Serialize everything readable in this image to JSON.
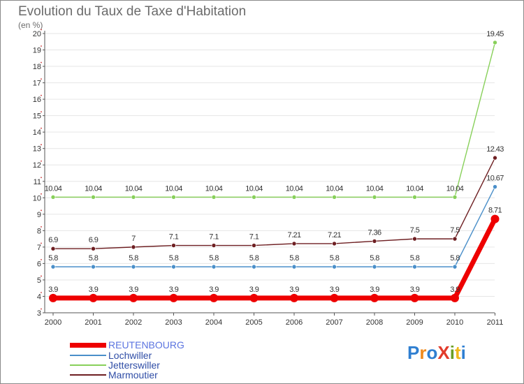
{
  "chart_data": {
    "type": "line",
    "title": "Evolution du Taux de Taxe d'Habitation",
    "unit_label": "(en %)",
    "x": [
      "2000",
      "2001",
      "2002",
      "2003",
      "2004",
      "2005",
      "2006",
      "2007",
      "2008",
      "2009",
      "2010",
      "2011"
    ],
    "ylim": [
      3,
      20
    ],
    "yticks": [
      "3",
      "4",
      "5",
      "6",
      "7",
      "8",
      "9",
      "10",
      "11",
      "12",
      "13",
      "14",
      "15",
      "16",
      "17",
      "18",
      "19",
      "20"
    ],
    "series": [
      {
        "name": "Jetterswiller",
        "color": "#88d05a",
        "values": [
          10.04,
          10.04,
          10.04,
          10.04,
          10.04,
          10.04,
          10.04,
          10.04,
          10.04,
          10.04,
          10.04,
          19.45
        ],
        "labels": [
          "10.04",
          "10.04",
          "10.04",
          "10.04",
          "10.04",
          "10.04",
          "10.04",
          "10.04",
          "10.04",
          "10.04",
          "10.04",
          "19.45"
        ]
      },
      {
        "name": "Marmoutier",
        "color": "#6e1f22",
        "values": [
          6.9,
          6.9,
          7,
          7.1,
          7.1,
          7.1,
          7.21,
          7.21,
          7.36,
          7.5,
          7.5,
          12.43
        ],
        "labels": [
          "6.9",
          "6.9",
          "7",
          "7.1",
          "7.1",
          "7.1",
          "7.21",
          "7.21",
          "7.36",
          "7.5",
          "7.5",
          "12.43"
        ]
      },
      {
        "name": "Lochwiller",
        "color": "#4a8fc9",
        "values": [
          5.8,
          5.8,
          5.8,
          5.8,
          5.8,
          5.8,
          5.8,
          5.8,
          5.8,
          5.8,
          5.8,
          10.67
        ],
        "labels": [
          "5.8",
          "5.8",
          "5.8",
          "5.8",
          "5.8",
          "5.8",
          "5.8",
          "5.8",
          "5.8",
          "5.8",
          "5.8",
          "10.67"
        ]
      },
      {
        "name": "REUTENBOURG",
        "color": "#ee0000",
        "values": [
          3.9,
          3.9,
          3.9,
          3.9,
          3.9,
          3.9,
          3.9,
          3.9,
          3.9,
          3.9,
          3.9,
          8.71
        ],
        "labels": [
          "3.9",
          "3.9",
          "3.9",
          "3.9",
          "3.9",
          "3.9",
          "3.9",
          "3.9",
          "3.9",
          "3.9",
          "3.9",
          "8.71"
        ]
      }
    ],
    "legend": [
      {
        "name": "REUTENBOURG",
        "line_color": "#ee0000",
        "text_color": "#5b74e0",
        "thick": true
      },
      {
        "name": "Lochwiller",
        "line_color": "#4a8fc9",
        "text_color": "#2f4da6",
        "thick": false
      },
      {
        "name": "Jetterswiller",
        "line_color": "#88d05a",
        "text_color": "#2f4da6",
        "thick": false
      },
      {
        "name": "Marmoutier",
        "line_color": "#6e1f22",
        "text_color": "#2f4da6",
        "thick": false
      }
    ]
  },
  "logo": {
    "text": "ProXiti",
    "letter_colors": [
      "#2f7fd1",
      "#f08a1c",
      "#2f7fd1",
      "#e23b2b",
      "#6a9e24",
      "#f0b81c",
      "#2f7fd1"
    ]
  }
}
